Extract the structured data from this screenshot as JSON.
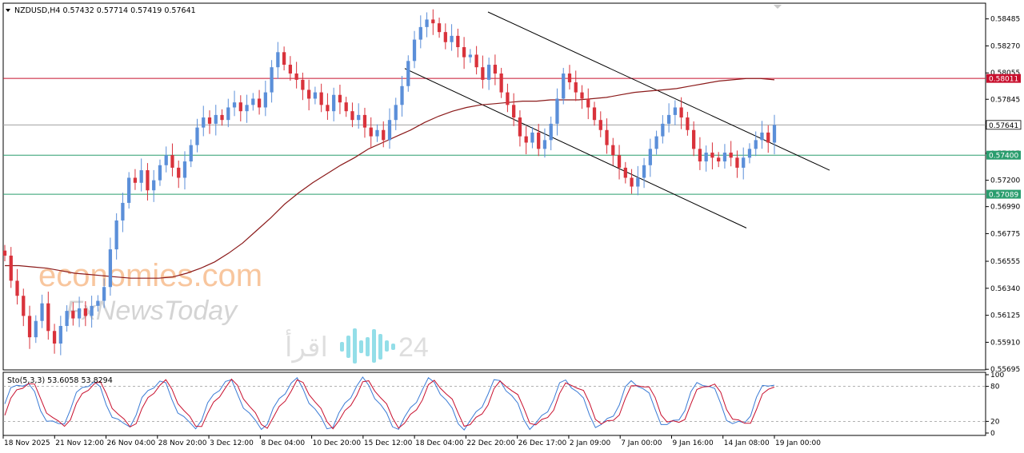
{
  "chart_data": {
    "type": "candlestick",
    "symbol_header": "NZDUSD,H4  0.57432 0.57714 0.57419 0.57641",
    "ylim": [
      0.5569,
      0.5861
    ],
    "y_ticks": [
      "0.58485",
      "0.58270",
      "0.58055",
      "0.57845",
      "0.57630",
      "0.57415",
      "0.57200",
      "0.56990",
      "0.56775",
      "0.56555",
      "0.56340",
      "0.56125",
      "0.55910",
      "0.55695"
    ],
    "x_ticks": [
      "18 Nov 2025",
      "21 Nov 12:00",
      "26 Nov 04:00",
      "28 Nov 20:00",
      "3 Dec 12:00",
      "8 Dec 04:00",
      "10 Dec 20:00",
      "15 Dec 12:00",
      "18 Dec 04:00",
      "22 Dec 20:00",
      "26 Dec 17:00",
      "2 Jan 09:00",
      "7 Jan 00:00",
      "9 Jan 16:00",
      "14 Jan 08:00",
      "19 Jan 00:00"
    ],
    "price_levels": [
      {
        "label": "0.58011",
        "value": 0.58011,
        "color": "#c8102e",
        "line": "#c8102e"
      },
      {
        "label": "0.57641",
        "value": 0.57641,
        "color": "#000000",
        "line": "#a0a0a0"
      },
      {
        "label": "0.57400",
        "value": 0.574,
        "color": "#2a9d6e",
        "line": "#2a9d6e"
      },
      {
        "label": "0.57089",
        "value": 0.57089,
        "color": "#2a9d6e",
        "line": "#2a9d6e"
      }
    ],
    "closes": [
      0.566,
      0.564,
      0.5628,
      0.5612,
      0.5595,
      0.5608,
      0.5622,
      0.56,
      0.559,
      0.5604,
      0.5616,
      0.561,
      0.5618,
      0.5612,
      0.562,
      0.5624,
      0.5635,
      0.5665,
      0.5688,
      0.5702,
      0.5722,
      0.5718,
      0.5728,
      0.5712,
      0.572,
      0.5732,
      0.574,
      0.573,
      0.5722,
      0.5735,
      0.5748,
      0.5762,
      0.577,
      0.5765,
      0.5772,
      0.5768,
      0.5778,
      0.5782,
      0.5775,
      0.578,
      0.5785,
      0.5778,
      0.579,
      0.581,
      0.5822,
      0.5812,
      0.5805,
      0.58,
      0.5792,
      0.5785,
      0.579,
      0.578,
      0.5775,
      0.5788,
      0.5782,
      0.5775,
      0.5768,
      0.5772,
      0.5762,
      0.5755,
      0.576,
      0.5752,
      0.5768,
      0.578,
      0.5795,
      0.5815,
      0.5832,
      0.5842,
      0.5848,
      0.5845,
      0.5838,
      0.583,
      0.5835,
      0.5826,
      0.5818,
      0.582,
      0.581,
      0.58,
      0.5812,
      0.5805,
      0.579,
      0.578,
      0.577,
      0.5755,
      0.575,
      0.5758,
      0.5745,
      0.5752,
      0.5765,
      0.5785,
      0.5805,
      0.5798,
      0.579,
      0.5785,
      0.5778,
      0.5768,
      0.576,
      0.5748,
      0.574,
      0.573,
      0.5722,
      0.5715,
      0.5722,
      0.5732,
      0.5745,
      0.5755,
      0.5765,
      0.5772,
      0.5778,
      0.577,
      0.576,
      0.5745,
      0.5735,
      0.5742,
      0.5738,
      0.5735,
      0.5742,
      0.5738,
      0.573,
      0.5738,
      0.5745,
      0.5752,
      0.5758,
      0.575,
      0.5764
    ],
    "ma": [
      0.5652,
      0.5652,
      0.5651,
      0.565,
      0.5648,
      0.5646,
      0.5645,
      0.5644,
      0.5643,
      0.5642,
      0.5642,
      0.5642,
      0.5643,
      0.5646,
      0.565,
      0.5655,
      0.5662,
      0.567,
      0.568,
      0.569,
      0.5701,
      0.571,
      0.5718,
      0.5725,
      0.5732,
      0.5738,
      0.5745,
      0.575,
      0.5755,
      0.576,
      0.5766,
      0.5771,
      0.5775,
      0.5778,
      0.578,
      0.5781,
      0.5782,
      0.5783,
      0.5783,
      0.5784,
      0.5784,
      0.5784,
      0.5785,
      0.5786,
      0.5788,
      0.579,
      0.5791,
      0.5792,
      0.5793,
      0.5795,
      0.5797,
      0.5799,
      0.58,
      0.5801,
      0.5801,
      0.58
    ],
    "trendlines": [
      {
        "name": "upper-channel",
        "points": [
          [
            0.5848,
            0.5848
          ],
          [
            0.5735,
            0.5735
          ]
        ]
      },
      {
        "name": "lower-channel",
        "points": [
          [
            0.5808,
            0.5808
          ],
          [
            0.568,
            0.568
          ]
        ]
      }
    ],
    "stochastic": {
      "label": "Sto(5,3,3) 53.6058 53.8294",
      "k_value": 53.6058,
      "d_value": 53.8294,
      "ylim": [
        0,
        100
      ],
      "y_ticks": [
        "100",
        "80",
        "20",
        "0"
      ],
      "levels": [
        80,
        20
      ]
    }
  },
  "watermarks": {
    "brand": "economies.com",
    "brand_sub": "FxNewsToday",
    "arabic": "اقرأ",
    "arabic_num": "24"
  },
  "colors": {
    "bull": "#5b8fd9",
    "bear": "#d9323b",
    "ma": "#8b1a1a",
    "stoch_k": "#3a7bd5",
    "stoch_d": "#c8102e",
    "brand_orange": "#f4a15e"
  }
}
